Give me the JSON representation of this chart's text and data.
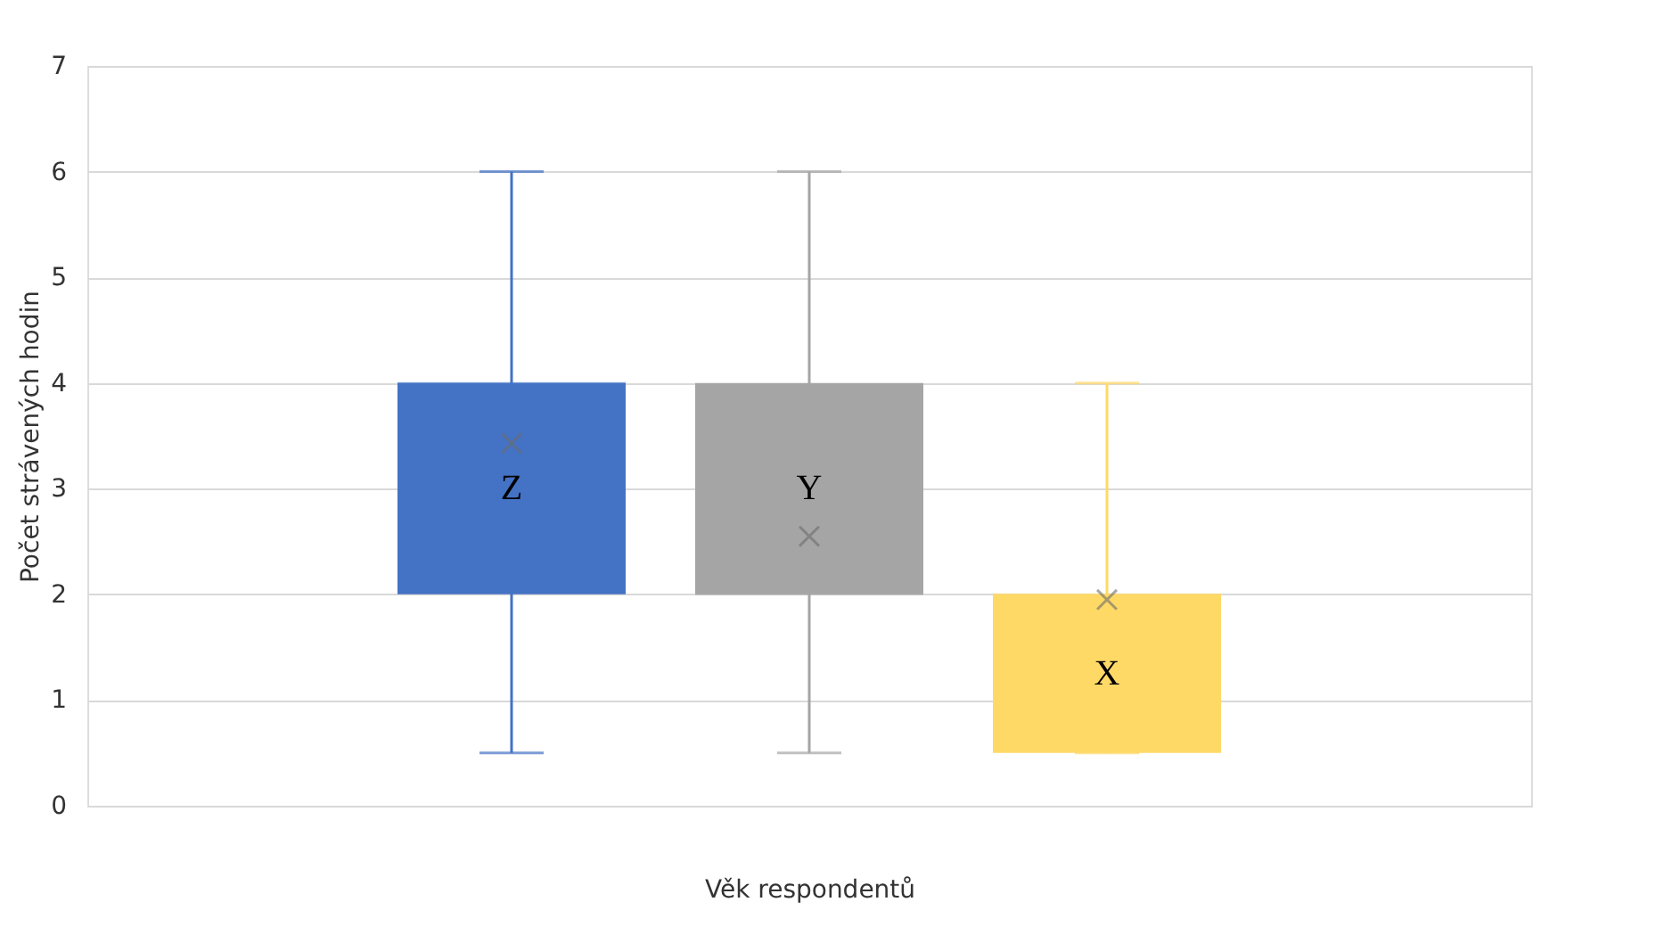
{
  "chart_data": {
    "type": "box",
    "categories": [
      null
    ],
    "xlabel": "Věk respondentů",
    "ylabel": "Počet strávených hodin",
    "ylim": [
      0,
      7
    ],
    "yticks": [
      0,
      1,
      2,
      3,
      4,
      5,
      6,
      7
    ],
    "grid": "y",
    "marker": "cross",
    "series": [
      {
        "name": "Z",
        "color": "#4472c4",
        "boxes": [
          {
            "low": 0.5,
            "q1": 2,
            "median": 4,
            "q3": 4,
            "high": 6,
            "mean": 3.43
          }
        ]
      },
      {
        "name": "Y",
        "color": "#a5a5a5",
        "boxes": [
          {
            "low": 0.5,
            "q1": 2,
            "median": 2,
            "q3": 4,
            "high": 6,
            "mean": 2.55
          }
        ]
      },
      {
        "name": "X",
        "color": "#ffd966",
        "boxes": [
          {
            "low": 0.5,
            "q1": 0.5,
            "median": 2,
            "q3": 2,
            "high": 4,
            "mean": 1.95
          }
        ]
      }
    ]
  }
}
